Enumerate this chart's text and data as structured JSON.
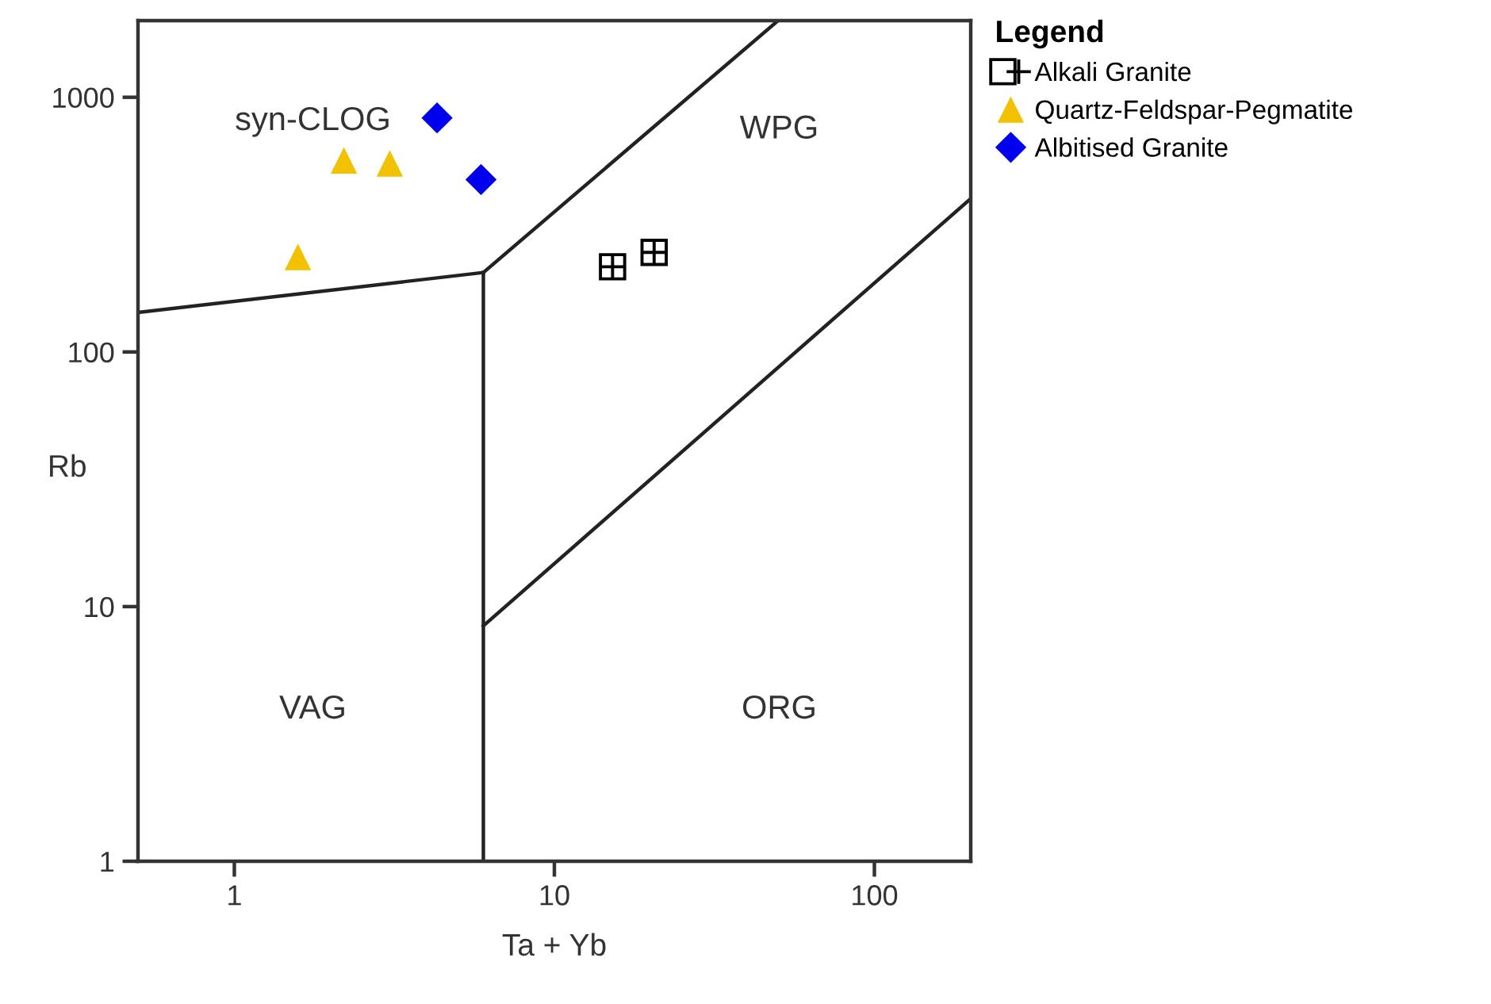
{
  "chart_data": {
    "type": "scatter",
    "xlabel": "Ta + Yb",
    "ylabel": "Rb",
    "legend_title": "Legend",
    "legend": "top right",
    "log": "xy",
    "grid": false,
    "xlim": [
      0.5,
      200
    ],
    "ylim": [
      1,
      2000
    ],
    "xticks": [
      1,
      10,
      100
    ],
    "yticks": [
      1,
      10,
      100,
      1000
    ],
    "series": [
      {
        "name": "Alkali Granite",
        "color": "#000000",
        "marker": "square",
        "x": [
          15.2,
          20.5
        ],
        "values": [
          216,
          246
        ]
      },
      {
        "name": "Quartz-Feldspar-Pegmatite",
        "color": "#f2c200",
        "marker": "triangle",
        "x": [
          2.2,
          3.06,
          1.58
        ],
        "values": [
          565,
          550,
          236
        ]
      },
      {
        "name": "Albitised Granite",
        "color": "#0000ee",
        "marker": "diamond",
        "x": [
          4.3,
          5.9
        ],
        "values": [
          830,
          475
        ]
      },
      {
        "type": "line",
        "color": "#222222",
        "marker": "none",
        "x": [
          0.5,
          6
        ],
        "values": [
          143,
          205
        ]
      },
      {
        "type": "line",
        "color": "#222222",
        "marker": "none",
        "x": [
          6,
          6
        ],
        "values": [
          1,
          205
        ]
      },
      {
        "type": "line",
        "color": "#222222",
        "marker": "none",
        "x": [
          6,
          50
        ],
        "values": [
          205,
          2000
        ]
      },
      {
        "type": "line",
        "color": "#222222",
        "marker": "none",
        "x": [
          6,
          200
        ],
        "values": [
          8.4,
          400
        ]
      }
    ],
    "annotations": [
      "syn-CLOG",
      "WPG",
      "VAG",
      "ORG"
    ]
  }
}
